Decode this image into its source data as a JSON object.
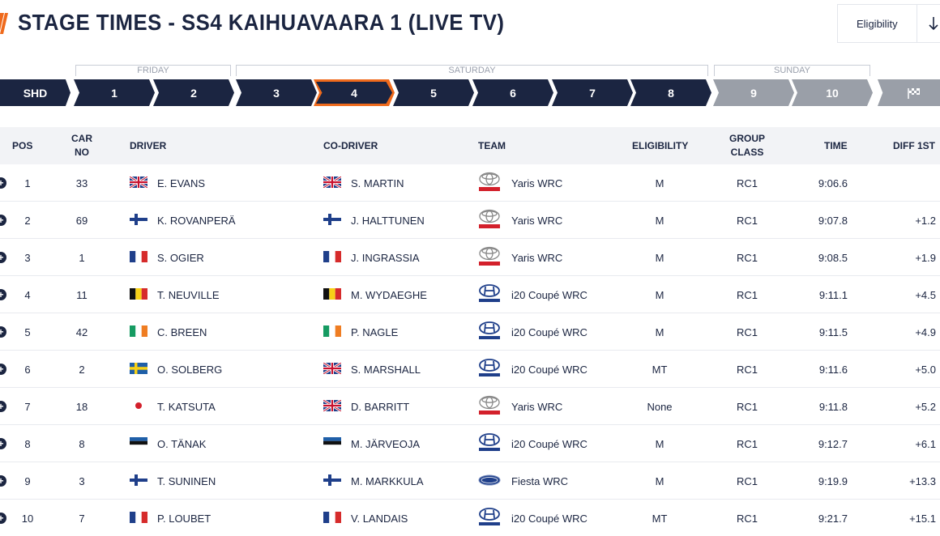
{
  "header": {
    "title": "STAGE TIMES - SS4 KAIHUAVAARA 1 (LIVE TV)",
    "sort_label": "Eligibility"
  },
  "days": [
    "FRIDAY",
    "SATURDAY",
    "SUNDAY"
  ],
  "stages": [
    "SHD",
    "1",
    "2",
    "3",
    "4",
    "5",
    "6",
    "7",
    "8",
    "9",
    "10"
  ],
  "active_stage": "4",
  "columns": [
    "POS",
    "CAR NO",
    "DRIVER",
    "CO-DRIVER",
    "TEAM",
    "ELIGIBILITY",
    "GROUP CLASS",
    "TIME",
    "DIFF 1ST"
  ],
  "colors": {
    "navy": "#1b2541",
    "accent": "#ef6a1c",
    "future": "#9a9fa8"
  },
  "rows": [
    {
      "pos": "1",
      "car": "33",
      "driver": "E. EVANS",
      "driver_flag": "gb",
      "codriver": "S. MARTIN",
      "codriver_flag": "gb",
      "team_logo": "toyota",
      "team": "Yaris WRC",
      "elig": "M",
      "group": "RC1",
      "time": "9:06.6",
      "diff": ""
    },
    {
      "pos": "2",
      "car": "69",
      "driver": "K. ROVANPERÄ",
      "driver_flag": "fi",
      "codriver": "J. HALTTUNEN",
      "codriver_flag": "fi",
      "team_logo": "toyota",
      "team": "Yaris WRC",
      "elig": "M",
      "group": "RC1",
      "time": "9:07.8",
      "diff": "+1.2"
    },
    {
      "pos": "3",
      "car": "1",
      "driver": "S. OGIER",
      "driver_flag": "fr",
      "codriver": "J. INGRASSIA",
      "codriver_flag": "fr",
      "team_logo": "toyota",
      "team": "Yaris WRC",
      "elig": "M",
      "group": "RC1",
      "time": "9:08.5",
      "diff": "+1.9"
    },
    {
      "pos": "4",
      "car": "11",
      "driver": "T. NEUVILLE",
      "driver_flag": "be",
      "codriver": "M. WYDAEGHE",
      "codriver_flag": "be",
      "team_logo": "hyundai",
      "team": "i20 Coupé WRC",
      "elig": "M",
      "group": "RC1",
      "time": "9:11.1",
      "diff": "+4.5"
    },
    {
      "pos": "5",
      "car": "42",
      "driver": "C. BREEN",
      "driver_flag": "ie",
      "codriver": "P. NAGLE",
      "codriver_flag": "ie",
      "team_logo": "hyundai",
      "team": "i20 Coupé WRC",
      "elig": "M",
      "group": "RC1",
      "time": "9:11.5",
      "diff": "+4.9"
    },
    {
      "pos": "6",
      "car": "2",
      "driver": "O. SOLBERG",
      "driver_flag": "se",
      "codriver": "S. MARSHALL",
      "codriver_flag": "gb",
      "team_logo": "hyundai",
      "team": "i20 Coupé WRC",
      "elig": "MT",
      "group": "RC1",
      "time": "9:11.6",
      "diff": "+5.0"
    },
    {
      "pos": "7",
      "car": "18",
      "driver": "T. KATSUTA",
      "driver_flag": "jp",
      "codriver": "D. BARRITT",
      "codriver_flag": "gb",
      "team_logo": "toyota",
      "team": "Yaris WRC",
      "elig": "None",
      "group": "RC1",
      "time": "9:11.8",
      "diff": "+5.2"
    },
    {
      "pos": "8",
      "car": "8",
      "driver": "O. TÄNAK",
      "driver_flag": "ee",
      "codriver": "M. JÄRVEOJA",
      "codriver_flag": "ee",
      "team_logo": "hyundai",
      "team": "i20 Coupé WRC",
      "elig": "M",
      "group": "RC1",
      "time": "9:12.7",
      "diff": "+6.1"
    },
    {
      "pos": "9",
      "car": "3",
      "driver": "T. SUNINEN",
      "driver_flag": "fi",
      "codriver": "M. MARKKULA",
      "codriver_flag": "fi",
      "team_logo": "ford",
      "team": "Fiesta WRC",
      "elig": "M",
      "group": "RC1",
      "time": "9:19.9",
      "diff": "+13.3"
    },
    {
      "pos": "10",
      "car": "7",
      "driver": "P. LOUBET",
      "driver_flag": "fr",
      "codriver": "V. LANDAIS",
      "codriver_flag": "fr",
      "team_logo": "hyundai",
      "team": "i20 Coupé WRC",
      "elig": "MT",
      "group": "RC1",
      "time": "9:21.7",
      "diff": "+15.1"
    }
  ]
}
